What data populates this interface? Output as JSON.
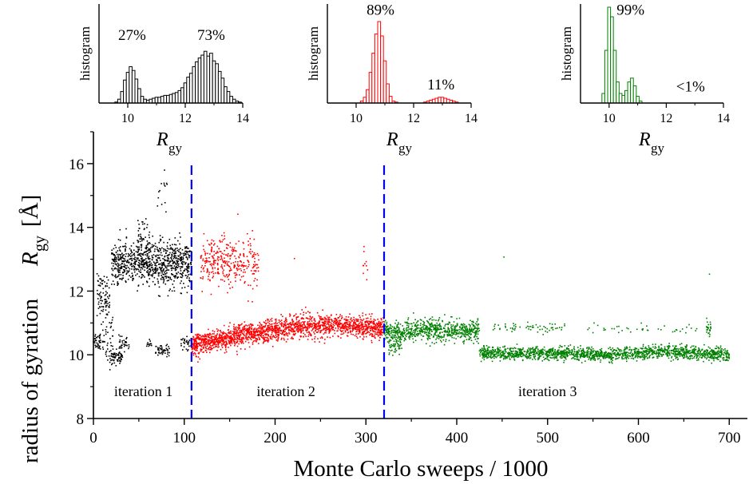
{
  "colors": {
    "iteration_1": "#000000",
    "iteration_2": "#ff0000",
    "iteration_3": "#008000",
    "divider": "#0000ff"
  },
  "chart_data": [
    {
      "type": "scatter",
      "xlabel": "Monte Carlo sweeps / 1000",
      "ylabel": {
        "text": "radius of gyration",
        "symbol": "R",
        "subscript": "gy",
        "unit": "[Å]"
      },
      "xlim": [
        0,
        720
      ],
      "ylim": [
        8,
        17
      ],
      "xticks": [
        0,
        100,
        200,
        300,
        400,
        500,
        600,
        700
      ],
      "yticks": [
        8,
        10,
        12,
        14,
        16
      ],
      "dividers": [
        108,
        320
      ],
      "iteration_labels": [
        {
          "text": "iteration 1",
          "x": 55,
          "y": 8.85
        },
        {
          "text": "iteration 2",
          "x": 212,
          "y": 8.85
        },
        {
          "text": "iteration 3",
          "x": 500,
          "y": 8.85
        }
      ],
      "series": [
        {
          "name": "iteration 1",
          "color": "#000000",
          "x_range": [
            0,
            108
          ],
          "clusters": [
            {
              "x": [
                0,
                8
              ],
              "y": 10.45,
              "spread": 0.15,
              "n": 40
            },
            {
              "x": [
                4,
                18
              ],
              "y": 11.8,
              "spread": 0.35,
              "n": 90
            },
            {
              "x": [
                10,
                22
              ],
              "y": 10.5,
              "spread": 0.35,
              "n": 40
            },
            {
              "x": [
                18,
                32
              ],
              "y": 9.95,
              "spread": 0.12,
              "n": 70
            },
            {
              "x": [
                28,
                40
              ],
              "y": 10.35,
              "spread": 0.1,
              "n": 30
            },
            {
              "x": [
                20,
                108
              ],
              "y": 12.85,
              "spread": 0.35,
              "n": 850
            },
            {
              "x": [
                48,
                62
              ],
              "y": 13.6,
              "spread": 0.35,
              "n": 50
            },
            {
              "x": [
                70,
                82
              ],
              "y": 15.0,
              "spread": 0.35,
              "n": 14
            },
            {
              "x": [
                58,
                64
              ],
              "y": 10.3,
              "spread": 0.08,
              "n": 12
            },
            {
              "x": [
                68,
                84
              ],
              "y": 10.15,
              "spread": 0.08,
              "n": 50
            },
            {
              "x": [
                96,
                108
              ],
              "y": 10.35,
              "spread": 0.12,
              "n": 30
            }
          ]
        },
        {
          "name": "iteration 2",
          "color": "#ff0000",
          "x_range": [
            108,
            320
          ],
          "clusters": [
            {
              "x": [
                108,
                320
              ],
              "y": 10.75,
              "spread": 0.17,
              "n": 1900,
              "trend": [
                10.3,
                10.6,
                10.85,
                10.95,
                10.8
              ]
            },
            {
              "x": [
                118,
                182
              ],
              "y": 12.9,
              "spread": 0.4,
              "n": 330
            },
            {
              "x": [
                296,
                302
              ],
              "y": 12.8,
              "spread": 0.25,
              "n": 10
            },
            {
              "x": [
                220,
                222
              ],
              "y": 13.0,
              "spread": 0.05,
              "n": 1
            }
          ]
        },
        {
          "name": "iteration 3",
          "color": "#008000",
          "x_range": [
            320,
            700
          ],
          "clusters": [
            {
              "x": [
                320,
                425
              ],
              "y": 10.75,
              "spread": 0.17,
              "n": 720
            },
            {
              "x": [
                325,
                340
              ],
              "y": 10.3,
              "spread": 0.15,
              "n": 60
            },
            {
              "x": [
                425,
                700
              ],
              "y": 10.05,
              "spread": 0.1,
              "n": 1700,
              "trend": [
                10.05,
                10.05,
                10.0,
                10.1,
                10.0
              ]
            },
            {
              "x": [
                440,
                520
              ],
              "y": 10.85,
              "spread": 0.08,
              "n": 60
            },
            {
              "x": [
                540,
                665
              ],
              "y": 10.8,
              "spread": 0.08,
              "n": 40
            },
            {
              "x": [
                675,
                680
              ],
              "y": 10.85,
              "spread": 0.1,
              "n": 25
            },
            {
              "x": [
                448,
                452
              ],
              "y": 13.05,
              "spread": 0.02,
              "n": 1
            },
            {
              "x": [
                678,
                680
              ],
              "y": 12.55,
              "spread": 0.02,
              "n": 1
            }
          ]
        }
      ]
    },
    {
      "type": "bar",
      "title": "",
      "xlabel": {
        "symbol": "R",
        "subscript": "gy"
      },
      "ylabel": "histogram",
      "xlim": [
        9,
        14
      ],
      "xticks": [
        10,
        12,
        14
      ],
      "color": "#000000",
      "bin_centers": [
        9.5,
        9.6,
        9.7,
        9.8,
        9.9,
        10.0,
        10.1,
        10.2,
        10.3,
        10.4,
        10.5,
        10.6,
        10.7,
        10.8,
        10.9,
        11.0,
        11.1,
        11.2,
        11.3,
        11.4,
        11.5,
        11.6,
        11.7,
        11.8,
        11.9,
        12.0,
        12.1,
        12.2,
        12.3,
        12.4,
        12.5,
        12.6,
        12.7,
        12.8,
        12.9,
        13.0,
        13.1,
        13.2,
        13.3,
        13.4,
        13.5,
        13.6,
        13.7,
        13.8,
        13.9
      ],
      "values": [
        0,
        0.01,
        0.04,
        0.12,
        0.24,
        0.32,
        0.38,
        0.34,
        0.25,
        0.15,
        0.07,
        0.04,
        0.03,
        0.04,
        0.05,
        0.06,
        0.06,
        0.07,
        0.08,
        0.08,
        0.09,
        0.1,
        0.11,
        0.13,
        0.16,
        0.21,
        0.27,
        0.31,
        0.38,
        0.43,
        0.47,
        0.5,
        0.54,
        0.49,
        0.52,
        0.44,
        0.41,
        0.33,
        0.26,
        0.17,
        0.12,
        0.07,
        0.04,
        0.02,
        0.01
      ],
      "annotations": [
        {
          "text": "27%",
          "x": 10.15,
          "y": 0.66
        },
        {
          "text": "73%",
          "x": 12.9,
          "y": 0.66
        }
      ]
    },
    {
      "type": "bar",
      "title": "",
      "xlabel": {
        "symbol": "R",
        "subscript": "gy"
      },
      "ylabel": "histogram",
      "xlim": [
        9,
        14
      ],
      "xticks": [
        10,
        12,
        14
      ],
      "color": "#ff0000",
      "bin_centers": [
        10.2,
        10.3,
        10.4,
        10.5,
        10.6,
        10.7,
        10.8,
        10.9,
        11.0,
        11.1,
        11.2,
        11.3,
        11.4,
        12.4,
        12.5,
        12.6,
        12.7,
        12.8,
        12.9,
        13.0,
        13.1,
        13.2,
        13.3,
        13.4,
        13.5
      ],
      "values": [
        0.02,
        0.06,
        0.14,
        0.32,
        0.52,
        0.72,
        0.85,
        0.7,
        0.44,
        0.2,
        0.07,
        0.02,
        0.01,
        0.01,
        0.02,
        0.03,
        0.04,
        0.05,
        0.06,
        0.06,
        0.05,
        0.04,
        0.03,
        0.02,
        0.01
      ],
      "annotations": [
        {
          "text": "89%",
          "x": 10.85,
          "y": 0.92
        },
        {
          "text": "11%",
          "x": 12.95,
          "y": 0.14
        }
      ]
    },
    {
      "type": "bar",
      "title": "",
      "xlabel": {
        "symbol": "R",
        "subscript": "gy"
      },
      "ylabel": "histogram",
      "xlim": [
        9,
        14
      ],
      "xticks": [
        10,
        12,
        14
      ],
      "color": "#008000",
      "bin_centers": [
        9.8,
        9.9,
        10.0,
        10.1,
        10.2,
        10.3,
        10.4,
        10.5,
        10.6,
        10.7,
        10.8,
        10.9,
        11.0,
        11.1
      ],
      "values": [
        0.1,
        0.55,
        1.0,
        0.9,
        0.55,
        0.22,
        0.1,
        0.08,
        0.13,
        0.22,
        0.26,
        0.18,
        0.07,
        0.02
      ],
      "annotations": [
        {
          "text": "99%",
          "x": 10.75,
          "y": 0.92
        },
        {
          "text": "<1%",
          "x": 12.85,
          "y": 0.12
        }
      ]
    }
  ]
}
